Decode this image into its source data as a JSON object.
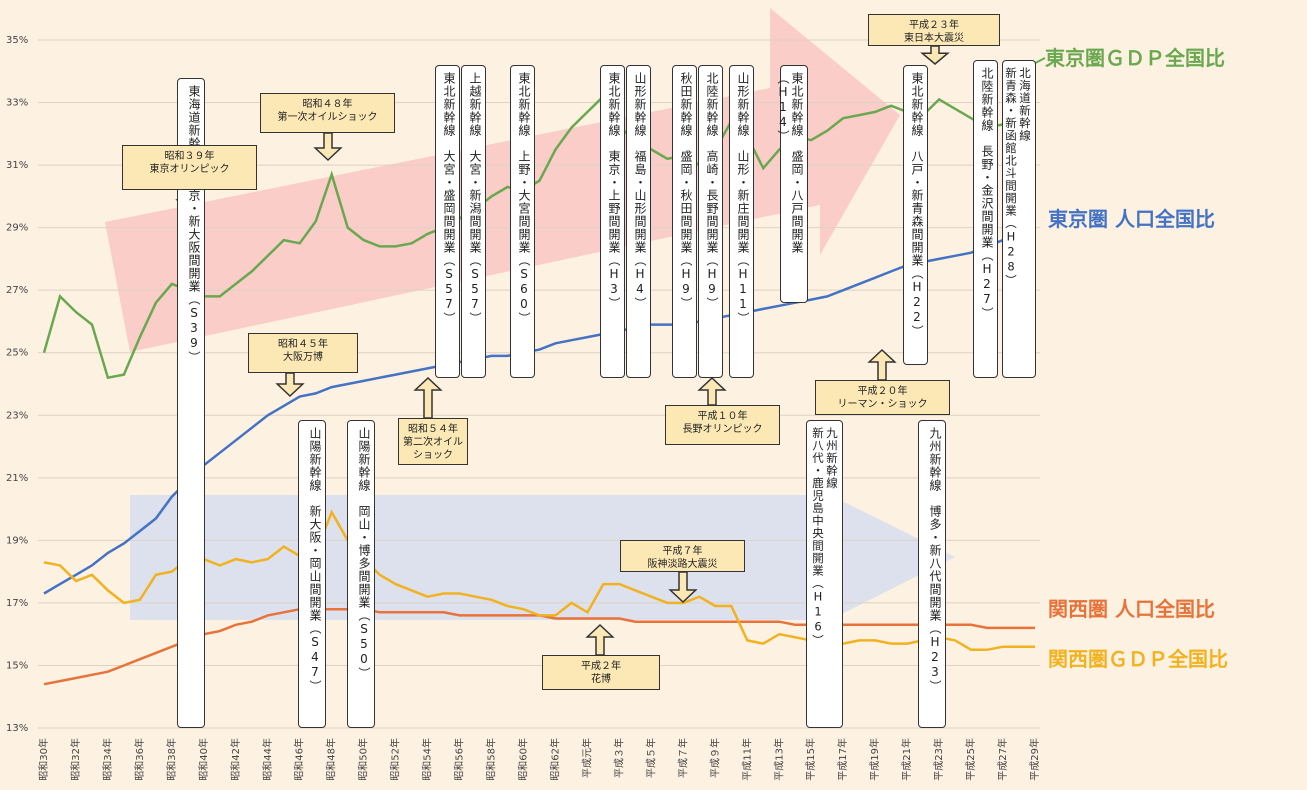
{
  "chart_data": {
    "type": "line",
    "categories": [
      "昭和30年",
      null,
      "昭和32年",
      null,
      "昭和34年",
      null,
      "昭和36年",
      null,
      "昭和38年",
      null,
      "昭和40年",
      null,
      "昭和42年",
      null,
      "昭和44年",
      null,
      "昭和46年",
      null,
      "昭和48年",
      null,
      "昭和50年",
      null,
      "昭和52年",
      null,
      "昭和54年",
      null,
      "昭和56年",
      null,
      "昭和58年",
      null,
      "昭和60年",
      null,
      "昭和62年",
      null,
      "平成元年",
      null,
      "平成３年",
      null,
      "平成５年",
      null,
      "平成７年",
      null,
      "平成９年",
      null,
      "平成11年",
      null,
      "平成13年",
      null,
      "平成15年",
      null,
      "平成17年",
      null,
      "平成19年",
      null,
      "平成21年",
      null,
      "平成23年",
      null,
      "平成25年",
      null,
      "平成27年",
      null,
      "平成29年"
    ],
    "series": [
      {
        "name": "東京圏ＧＤＰ全国比",
        "color": "#6aa84f",
        "values": [
          25.0,
          26.8,
          26.3,
          25.9,
          24.2,
          24.3,
          25.5,
          26.6,
          27.2,
          27.0,
          26.8,
          26.8,
          27.2,
          27.6,
          28.1,
          28.6,
          28.5,
          29.2,
          30.7,
          29.0,
          28.6,
          28.4,
          28.4,
          28.5,
          28.8,
          29.0,
          29.3,
          29.6,
          30.0,
          30.3,
          30.2,
          30.5,
          31.5,
          32.2,
          32.7,
          33.2,
          32.2,
          31.8,
          31.5,
          31.2,
          31.3,
          31.0,
          31.5,
          32.4,
          31.9,
          30.9,
          31.5,
          31.9,
          31.8,
          32.1,
          32.5,
          32.6,
          32.7,
          32.9,
          32.7,
          32.6,
          33.1,
          32.8,
          32.5,
          32.2,
          32.3,
          32.4,
          32.5
        ]
      },
      {
        "name": "東京圏 人口全国比",
        "color": "#4472c4",
        "values": [
          17.3,
          17.6,
          17.9,
          18.2,
          18.6,
          18.9,
          19.3,
          19.7,
          20.4,
          20.9,
          21.4,
          21.8,
          22.2,
          22.6,
          23.0,
          23.3,
          23.6,
          23.7,
          23.9,
          24.0,
          24.1,
          24.2,
          24.3,
          24.4,
          24.5,
          24.6,
          24.7,
          24.8,
          24.9,
          24.9,
          25.0,
          25.1,
          25.3,
          25.4,
          25.5,
          25.6,
          25.7,
          25.8,
          25.9,
          25.9,
          25.9,
          26.0,
          26.1,
          26.2,
          26.3,
          26.4,
          26.5,
          26.6,
          26.7,
          26.8,
          27.0,
          27.2,
          27.4,
          27.6,
          27.8,
          27.9,
          28.0,
          28.1,
          28.2,
          28.4,
          28.6,
          28.8,
          28.9
        ]
      },
      {
        "name": "関西圏 人口全国比",
        "color": "#e8733a",
        "values": [
          14.4,
          14.5,
          14.6,
          14.7,
          14.8,
          15.0,
          15.2,
          15.4,
          15.6,
          15.8,
          16.0,
          16.1,
          16.3,
          16.4,
          16.6,
          16.7,
          16.8,
          16.8,
          16.8,
          16.8,
          16.8,
          16.7,
          16.7,
          16.7,
          16.7,
          16.7,
          16.6,
          16.6,
          16.6,
          16.6,
          16.6,
          16.6,
          16.5,
          16.5,
          16.5,
          16.5,
          16.5,
          16.4,
          16.4,
          16.4,
          16.4,
          16.4,
          16.4,
          16.4,
          16.4,
          16.4,
          16.4,
          16.3,
          16.3,
          16.3,
          16.3,
          16.3,
          16.3,
          16.3,
          16.3,
          16.3,
          16.3,
          16.3,
          16.3,
          16.2,
          16.2,
          16.2,
          16.2
        ]
      },
      {
        "name": "関西圏ＧＤＰ全国比",
        "color": "#f2b21f",
        "values": [
          18.3,
          18.2,
          17.7,
          17.9,
          17.4,
          17.0,
          17.1,
          17.9,
          18.0,
          18.4,
          18.4,
          18.2,
          18.4,
          18.3,
          18.4,
          18.8,
          18.5,
          18.6,
          19.9,
          19.0,
          18.4,
          17.9,
          17.6,
          17.4,
          17.2,
          17.3,
          17.3,
          17.2,
          17.1,
          16.9,
          16.8,
          16.6,
          16.6,
          17.0,
          16.7,
          17.6,
          17.6,
          17.4,
          17.2,
          17.0,
          17.0,
          17.2,
          16.9,
          16.9,
          15.8,
          15.7,
          16.0,
          15.9,
          15.8,
          15.6,
          15.7,
          15.8,
          15.8,
          15.7,
          15.7,
          15.8,
          15.9,
          15.8,
          15.5,
          15.5,
          15.6,
          15.6,
          15.6
        ]
      }
    ],
    "ylim": [
      13,
      35
    ],
    "yticks": [
      {
        "value": 13,
        "label": "13%"
      },
      {
        "value": 15,
        "label": "15%"
      },
      {
        "value": 17,
        "label": "17%"
      },
      {
        "value": 19,
        "label": "19%"
      },
      {
        "value": 21,
        "label": "21%"
      },
      {
        "value": 23,
        "label": "23%"
      },
      {
        "value": 25,
        "label": "25%"
      },
      {
        "value": 27,
        "label": "27%"
      },
      {
        "value": 29,
        "label": "29%"
      },
      {
        "value": 31,
        "label": "31%"
      },
      {
        "value": 33,
        "label": "33%"
      },
      {
        "value": 35,
        "label": "35%"
      }
    ],
    "grid": true,
    "openings": [
      [
        "東海道新幹線　東京・新大阪間開業（S39）"
      ],
      [
        "山陽新幹線　新大阪・岡山間開業（S47）"
      ],
      [
        "山陽新幹線　岡山・博多間開業（S50）"
      ],
      [
        "東北新幹線　大宮・盛岡間開業（S57）"
      ],
      [
        "上越新幹線　大宮・新潟間開業（S57）"
      ],
      [
        "東北新幹線　上野・大宮間開業（S60）"
      ],
      [
        "東北新幹線　東京・上野間開業（H3）"
      ],
      [
        "山形新幹線　福島・山形間開業（H4）"
      ],
      [
        "秋田新幹線　盛岡・秋田間開業（H9）"
      ],
      [
        "北陸新幹線　高崎・長野間開業（H9）"
      ],
      [
        "山形新幹線　山形・新庄間開業（H11）"
      ],
      [
        "東北新幹線　盛岡・八戸間開業（H14）"
      ],
      [
        "東北新幹線　八戸・新青森間開業（H22）"
      ],
      [
        "北陸新幹線　長野・金沢間開業（H27）"
      ],
      [
        "北海道新幹線",
        "新青森・新函館北斗間開業（H28）"
      ],
      [
        "九州新幹線",
        "新八代・鹿児島中央間開業（H16）"
      ],
      [
        "九州新幹線　博多・新八代間開業（H23）"
      ]
    ],
    "annotations": [
      [
        "昭和３９年",
        "東京オリンピック"
      ],
      [
        "昭和４８年",
        "第一次オイルショック"
      ],
      [
        "昭和４５年",
        "大阪万博"
      ],
      [
        "昭和５４年",
        "第二次オイルショック"
      ],
      [
        "平成１０年",
        "長野オリンピック"
      ],
      [
        "平成２年",
        "花博"
      ],
      [
        "平成７年",
        "阪神淡路大震災"
      ],
      [
        "平成２０年",
        "リーマン・ショック"
      ],
      [
        "平成２３年",
        "東日本大震災"
      ]
    ]
  }
}
